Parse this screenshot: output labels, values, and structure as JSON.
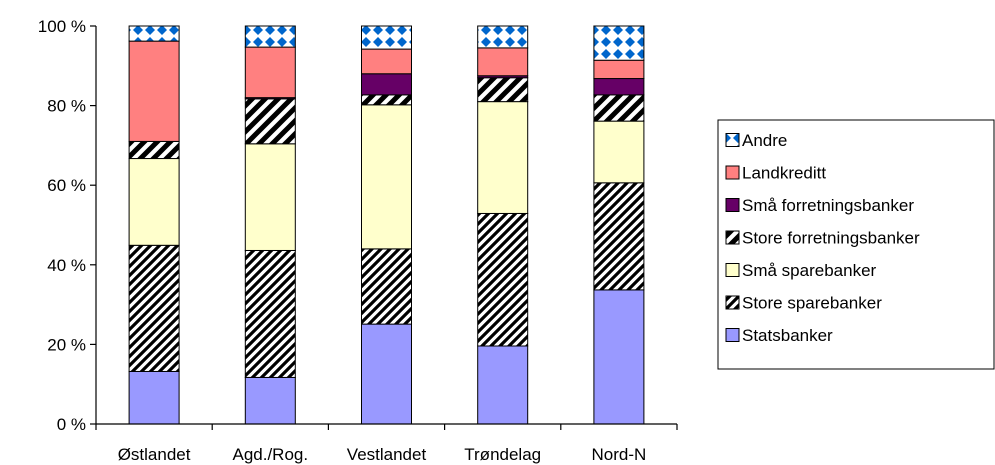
{
  "chart_data": {
    "type": "bar",
    "stacked": true,
    "normalized": true,
    "categories": [
      "Østlandet",
      "Agd./Rog.",
      "Vestlandet",
      "Trøndelag",
      "Nord-N"
    ],
    "ylim": [
      0,
      100
    ],
    "yticks": [
      0,
      20,
      40,
      60,
      80,
      100
    ],
    "ytick_labels": [
      "0 %",
      "20 %",
      "40 %",
      "60 %",
      "80 %",
      "100 %"
    ],
    "grid": false,
    "legend_position": "right",
    "series": [
      {
        "name": "Statsbanker",
        "color": "#9999ff",
        "pattern": "solid",
        "values": [
          13.2,
          11.7,
          25.1,
          19.6,
          33.7
        ]
      },
      {
        "name": "Store sparebanker",
        "color": "#ffffff",
        "pattern": "diagonal-stripes-narrow",
        "values": [
          31.7,
          31.9,
          18.9,
          33.3,
          26.9
        ]
      },
      {
        "name": "Små sparebanker",
        "color": "#ffffcc",
        "pattern": "solid",
        "values": [
          21.8,
          26.8,
          36.2,
          28.1,
          15.5
        ]
      },
      {
        "name": "Store forretningsbanker",
        "color": "#ffffff",
        "pattern": "diagonal-stripes-wide",
        "values": [
          4.3,
          11.3,
          2.5,
          6.0,
          6.6
        ]
      },
      {
        "name": "Små forretningsbanker",
        "color": "#660066",
        "pattern": "solid",
        "values": [
          0.0,
          0.3,
          5.3,
          0.5,
          4.1
        ]
      },
      {
        "name": "Landkreditt",
        "color": "#ff8080",
        "pattern": "solid",
        "values": [
          25.2,
          12.7,
          6.2,
          7.0,
          4.6
        ]
      },
      {
        "name": "Andre",
        "color": "#0066cc",
        "pattern": "checker-diamond",
        "values": [
          3.8,
          5.3,
          5.8,
          5.5,
          8.6
        ]
      }
    ]
  }
}
